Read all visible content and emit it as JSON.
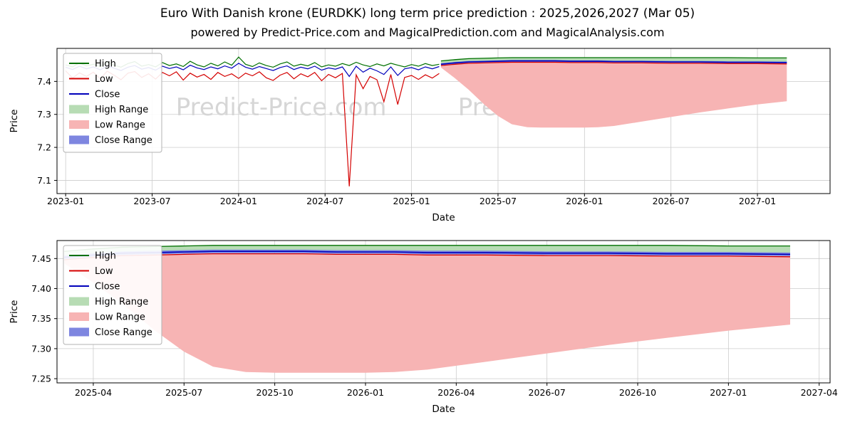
{
  "title": "Euro With Danish krone (EURDKK) long term price prediction : 2025,2026,2027 (Mar 05)",
  "subtitle": "powered by Predict-Price.com and MagicalPrediction.com and MagicalAnalysis.com",
  "watermark": "Predict-Price.com",
  "colors": {
    "high": "#007000",
    "low": "#d40000",
    "close": "#0000bb",
    "high_range": "#b7dcb4",
    "low_range": "#f7b4b4",
    "close_range": "#7e86e0",
    "grid": "#cccccc",
    "watermark": "#d6d6d6"
  },
  "legend": [
    {
      "label": "High",
      "swatch": "line",
      "color_key": "high"
    },
    {
      "label": "Low",
      "swatch": "line",
      "color_key": "low"
    },
    {
      "label": "Close",
      "swatch": "line",
      "color_key": "close"
    },
    {
      "label": "High Range",
      "swatch": "patch",
      "color_key": "high_range"
    },
    {
      "label": "Low Range",
      "swatch": "patch",
      "color_key": "low_range"
    },
    {
      "label": "Close Range",
      "swatch": "patch",
      "color_key": "close_range"
    }
  ],
  "chart_data": [
    {
      "name": "full-history-and-prediction-chart",
      "type": "line",
      "xlabel": "Date",
      "ylabel": "Price",
      "xlim": [
        2022.95,
        2027.42
      ],
      "ylim": [
        7.06,
        7.5
      ],
      "xticks": {
        "values": [
          2023.0,
          2023.5,
          2024.0,
          2024.5,
          2025.0,
          2025.5,
          2026.0,
          2026.5,
          2027.0
        ],
        "labels": [
          "2023-01",
          "2023-07",
          "2024-01",
          "2024-07",
          "2025-01",
          "2025-07",
          "2026-01",
          "2026-07",
          "2027-01"
        ]
      },
      "yticks": {
        "values": [
          7.1,
          7.2,
          7.3,
          7.4
        ],
        "labels": [
          "7.1",
          "7.2",
          "7.3",
          "7.4"
        ]
      },
      "history": {
        "x_start": 2023.0,
        "x_step": 0.04,
        "high": [
          7.45,
          7.444,
          7.456,
          7.447,
          7.452,
          7.445,
          7.458,
          7.449,
          7.443,
          7.454,
          7.46,
          7.446,
          7.451,
          7.444,
          7.457,
          7.448,
          7.453,
          7.445,
          7.461,
          7.45,
          7.444,
          7.455,
          7.447,
          7.459,
          7.449,
          7.474,
          7.452,
          7.445,
          7.456,
          7.448,
          7.443,
          7.453,
          7.459,
          7.446,
          7.452,
          7.447,
          7.457,
          7.444,
          7.45,
          7.446,
          7.454,
          7.448,
          7.458,
          7.45,
          7.445,
          7.453,
          7.447,
          7.455,
          7.449,
          7.444,
          7.451,
          7.446,
          7.454,
          7.448,
          7.452
        ],
        "low": [
          7.432,
          7.41,
          7.426,
          7.415,
          7.428,
          7.408,
          7.431,
          7.419,
          7.405,
          7.425,
          7.43,
          7.412,
          7.423,
          7.407,
          7.427,
          7.417,
          7.429,
          7.404,
          7.425,
          7.413,
          7.421,
          7.406,
          7.427,
          7.415,
          7.423,
          7.409,
          7.425,
          7.417,
          7.429,
          7.411,
          7.403,
          7.419,
          7.427,
          7.408,
          7.423,
          7.414,
          7.427,
          7.402,
          7.421,
          7.411,
          7.424,
          7.082,
          7.42,
          7.378,
          7.415,
          7.405,
          7.338,
          7.421,
          7.33,
          7.412,
          7.418,
          7.406,
          7.42,
          7.41,
          7.424
        ],
        "close": [
          7.443,
          7.436,
          7.446,
          7.438,
          7.444,
          7.435,
          7.447,
          7.44,
          7.433,
          7.443,
          7.448,
          7.437,
          7.442,
          7.434,
          7.446,
          7.439,
          7.444,
          7.435,
          7.449,
          7.441,
          7.436,
          7.444,
          7.438,
          7.447,
          7.44,
          7.455,
          7.443,
          7.437,
          7.445,
          7.439,
          7.433,
          7.442,
          7.447,
          7.436,
          7.443,
          7.438,
          7.446,
          7.434,
          7.441,
          7.437,
          7.444,
          7.415,
          7.446,
          7.428,
          7.44,
          7.432,
          7.421,
          7.444,
          7.418,
          7.438,
          7.442,
          7.435,
          7.444,
          7.438,
          7.445
        ]
      },
      "prediction": {
        "x": [
          2025.17,
          2025.25,
          2025.33,
          2025.42,
          2025.5,
          2025.58,
          2025.67,
          2025.75,
          2025.83,
          2025.92,
          2026.0,
          2026.08,
          2026.17,
          2026.33,
          2026.5,
          2026.67,
          2026.83,
          2027.0,
          2027.17
        ],
        "high_line": [
          7.462,
          7.466,
          7.469,
          7.47,
          7.471,
          7.472,
          7.472,
          7.472,
          7.472,
          7.472,
          7.472,
          7.472,
          7.472,
          7.472,
          7.472,
          7.472,
          7.472,
          7.471,
          7.471
        ],
        "high_band_lower": [
          7.452,
          7.456,
          7.459,
          7.46,
          7.461,
          7.462,
          7.462,
          7.462,
          7.462,
          7.461,
          7.461,
          7.461,
          7.46,
          7.46,
          7.459,
          7.459,
          7.458,
          7.458,
          7.457
        ],
        "close_line": [
          7.452,
          7.456,
          7.459,
          7.46,
          7.461,
          7.462,
          7.462,
          7.462,
          7.462,
          7.461,
          7.461,
          7.461,
          7.46,
          7.46,
          7.459,
          7.459,
          7.458,
          7.458,
          7.457
        ],
        "close_band_upper": [
          7.455,
          7.459,
          7.462,
          7.463,
          7.464,
          7.465,
          7.465,
          7.465,
          7.465,
          7.464,
          7.464,
          7.464,
          7.463,
          7.463,
          7.462,
          7.462,
          7.461,
          7.461,
          7.46
        ],
        "close_band_lower": [
          7.449,
          7.453,
          7.456,
          7.457,
          7.458,
          7.459,
          7.459,
          7.459,
          7.459,
          7.458,
          7.458,
          7.458,
          7.457,
          7.457,
          7.456,
          7.456,
          7.455,
          7.455,
          7.454
        ],
        "low_line": [
          7.448,
          7.452,
          7.455,
          7.456,
          7.457,
          7.458,
          7.458,
          7.458,
          7.458,
          7.457,
          7.457,
          7.457,
          7.456,
          7.456,
          7.455,
          7.455,
          7.454,
          7.454,
          7.453
        ],
        "low_band_lower": [
          7.442,
          7.41,
          7.375,
          7.33,
          7.295,
          7.27,
          7.261,
          7.26,
          7.26,
          7.26,
          7.26,
          7.261,
          7.265,
          7.278,
          7.292,
          7.306,
          7.318,
          7.33,
          7.34
        ]
      }
    },
    {
      "name": "prediction-detail-chart",
      "type": "line",
      "xlabel": "Date",
      "ylabel": "Price",
      "xlim": [
        2025.15,
        2027.28
      ],
      "ylim": [
        7.243,
        7.48
      ],
      "xticks": {
        "values": [
          2025.25,
          2025.5,
          2025.75,
          2026.0,
          2026.25,
          2026.5,
          2026.75,
          2027.0,
          2027.25
        ],
        "labels": [
          "2025-04",
          "2025-07",
          "2025-10",
          "2026-01",
          "2026-04",
          "2026-07",
          "2026-10",
          "2027-01",
          "2027-04"
        ]
      },
      "yticks": {
        "values": [
          7.25,
          7.3,
          7.35,
          7.4,
          7.45
        ],
        "labels": [
          "7.25",
          "7.30",
          "7.35",
          "7.40",
          "7.45"
        ]
      },
      "prediction": {
        "x": [
          2025.17,
          2025.25,
          2025.33,
          2025.42,
          2025.5,
          2025.58,
          2025.67,
          2025.75,
          2025.83,
          2025.92,
          2026.0,
          2026.08,
          2026.17,
          2026.33,
          2026.5,
          2026.67,
          2026.83,
          2027.0,
          2027.17
        ],
        "high_line": [
          7.462,
          7.466,
          7.469,
          7.47,
          7.471,
          7.472,
          7.472,
          7.472,
          7.472,
          7.472,
          7.472,
          7.472,
          7.472,
          7.472,
          7.472,
          7.472,
          7.472,
          7.471,
          7.471
        ],
        "high_band_lower": [
          7.452,
          7.456,
          7.459,
          7.46,
          7.461,
          7.462,
          7.462,
          7.462,
          7.462,
          7.461,
          7.461,
          7.461,
          7.46,
          7.46,
          7.459,
          7.459,
          7.458,
          7.458,
          7.457
        ],
        "close_line": [
          7.452,
          7.456,
          7.459,
          7.46,
          7.461,
          7.462,
          7.462,
          7.462,
          7.462,
          7.461,
          7.461,
          7.461,
          7.46,
          7.46,
          7.459,
          7.459,
          7.458,
          7.458,
          7.457
        ],
        "close_band_upper": [
          7.455,
          7.459,
          7.462,
          7.463,
          7.464,
          7.465,
          7.465,
          7.465,
          7.465,
          7.464,
          7.464,
          7.464,
          7.463,
          7.463,
          7.462,
          7.462,
          7.461,
          7.461,
          7.46
        ],
        "close_band_lower": [
          7.449,
          7.453,
          7.456,
          7.457,
          7.458,
          7.459,
          7.459,
          7.459,
          7.459,
          7.458,
          7.458,
          7.458,
          7.457,
          7.457,
          7.456,
          7.456,
          7.455,
          7.455,
          7.454
        ],
        "low_line": [
          7.448,
          7.452,
          7.455,
          7.456,
          7.457,
          7.458,
          7.458,
          7.458,
          7.458,
          7.457,
          7.457,
          7.457,
          7.456,
          7.456,
          7.455,
          7.455,
          7.454,
          7.454,
          7.453
        ],
        "low_band_lower": [
          7.442,
          7.41,
          7.375,
          7.33,
          7.295,
          7.27,
          7.261,
          7.26,
          7.26,
          7.26,
          7.26,
          7.261,
          7.265,
          7.278,
          7.292,
          7.306,
          7.318,
          7.33,
          7.34
        ]
      }
    }
  ]
}
